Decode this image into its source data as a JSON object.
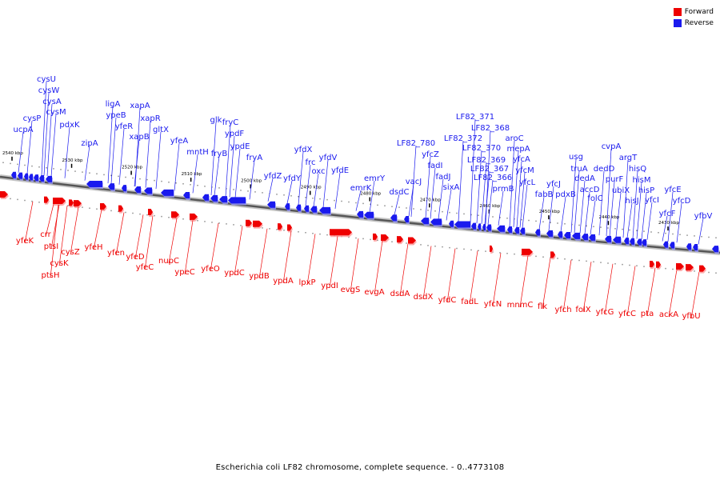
{
  "legend": {
    "forward_label": "Forward",
    "reverse_label": "Reverse",
    "forward_color": "#ee0000",
    "reverse_color": "#1a1aee"
  },
  "caption": "Escherichia coli LF82 chromosome, complete sequence. - 0..4773108",
  "scale": {
    "ticks": [
      {
        "label": "2540 kbp",
        "kbp": 2540
      },
      {
        "label": "2530 kbp",
        "kbp": 2530
      },
      {
        "label": "2520 kbp",
        "kbp": 2520
      },
      {
        "label": "2510 kbp",
        "kbp": 2510
      },
      {
        "label": "2500 kbp",
        "kbp": 2500
      },
      {
        "label": "2490 kbp",
        "kbp": 2490
      },
      {
        "label": "2480 kbp",
        "kbp": 2480
      },
      {
        "label": "2470 kbp",
        "kbp": 2470
      },
      {
        "label": "2460 kbp",
        "kbp": 2460
      },
      {
        "label": "2450 kbp",
        "kbp": 2450
      },
      {
        "label": "2440 kbp",
        "kbp": 2440
      },
      {
        "label": "2430 kbp",
        "kbp": 2430
      }
    ]
  },
  "reverse_genes": [
    "cysU",
    "cysW",
    "cysA",
    "cysM",
    "cysP",
    "ucpA",
    "pdxK",
    "zipA",
    "ligA",
    "ypeB",
    "yfeR",
    "xapA",
    "xapR",
    "xapB",
    "gltX",
    "yfeA",
    "mntH",
    "glk",
    "fryB",
    "fryC",
    "ypdF",
    "ypdE",
    "fryA",
    "yfdZ",
    "yfdY",
    "yfdX",
    "frc",
    "oxc",
    "yfdV",
    "yfdE",
    "emrK",
    "emrY",
    "dsdC",
    "vacJ",
    "LF82_780",
    "yfcZ",
    "fadI",
    "fadJ",
    "sixA",
    "LF82_372",
    "LF82_371",
    "LF82_368",
    "LF82_370",
    "LF82_369",
    "LF82_367",
    "LF82_366",
    "prmB",
    "aroC",
    "mepA",
    "yfcA",
    "yfcM",
    "yfcL",
    "yfcJ",
    "fabB",
    "pdxB",
    "usg",
    "truA",
    "dedA",
    "accD",
    "folC",
    "dedD",
    "cvpA",
    "purF",
    "ubiX",
    "argT",
    "hisQ",
    "hisM",
    "hisJ",
    "hisP",
    "yfcI",
    "yfcE",
    "yfcD",
    "yfcF",
    "yfbV"
  ],
  "forward_genes": [
    "yfeK",
    "crr",
    "ptsI",
    "ptsH",
    "cysK",
    "cysZ",
    "yfeH",
    "yfen",
    "yfeD",
    "yfeC",
    "nupC",
    "ypeC",
    "yfeO",
    "ypdC",
    "ypdB",
    "ypdA",
    "lpxP",
    "ypdI",
    "evgS",
    "evgA",
    "dsdA",
    "dsdX",
    "yfdC",
    "fadL",
    "yfcN",
    "mnmC",
    "flk",
    "yfch",
    "folX",
    "yfcG",
    "yfcC",
    "pta",
    "ackA",
    "yfbU"
  ]
}
